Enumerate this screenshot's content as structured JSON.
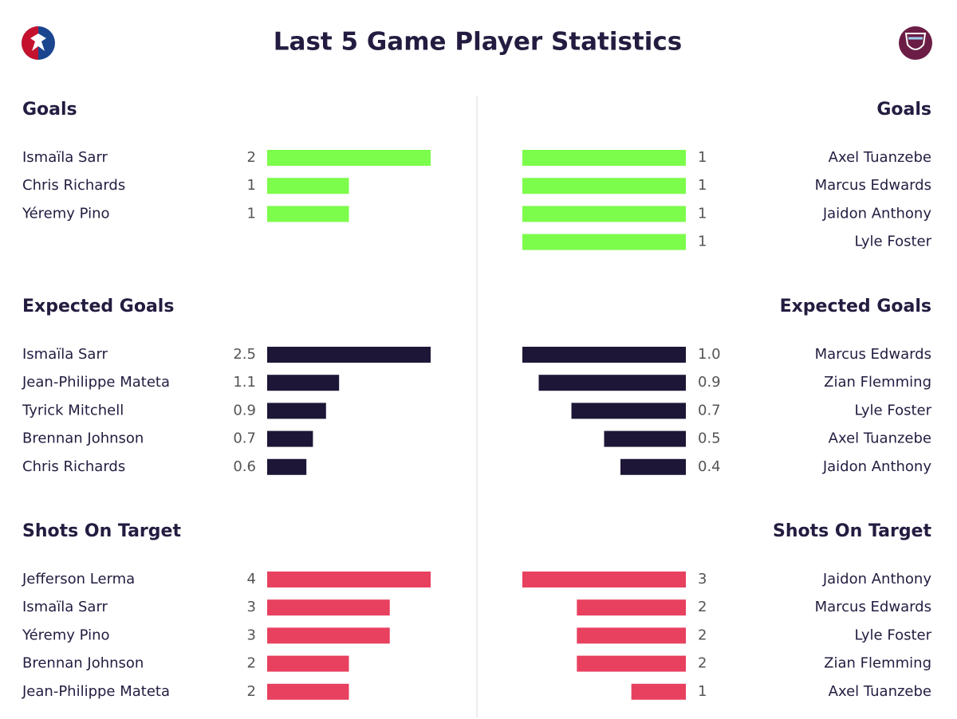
{
  "title": "Last 5 Game Player Statistics",
  "chart_data": [
    {
      "type": "bar",
      "side": "left",
      "title": "Goals",
      "categories": [
        "Ismaïla Sarr",
        "Chris Richards",
        "Yéremy Pino"
      ],
      "values": [
        2,
        1,
        1
      ],
      "xlim": [
        0,
        2
      ],
      "color": "#7cfc4b"
    },
    {
      "type": "bar",
      "side": "right",
      "title": "Goals",
      "categories": [
        "Axel Tuanzebe",
        "Marcus Edwards",
        "Jaidon Anthony",
        "Lyle Foster"
      ],
      "values": [
        1,
        1,
        1,
        1
      ],
      "xlim": [
        0,
        1
      ],
      "color": "#7cfc4b"
    },
    {
      "type": "bar",
      "side": "left",
      "title": "Expected Goals",
      "categories": [
        "Ismaïla Sarr",
        "Jean-Philippe Mateta",
        "Tyrick Mitchell",
        "Brennan Johnson",
        "Chris Richards"
      ],
      "values": [
        2.5,
        1.1,
        0.9,
        0.7,
        0.6
      ],
      "xlim": [
        0,
        2.5
      ],
      "color": "#1e1637"
    },
    {
      "type": "bar",
      "side": "right",
      "title": "Expected Goals",
      "categories": [
        "Marcus Edwards",
        "Zian Flemming",
        "Lyle Foster",
        "Axel Tuanzebe",
        "Jaidon Anthony"
      ],
      "values": [
        1.0,
        0.9,
        0.7,
        0.5,
        0.4
      ],
      "value_labels": [
        "1.0",
        "0.9",
        "0.7",
        "0.5",
        "0.4"
      ],
      "xlim": [
        0,
        1.0
      ],
      "color": "#1e1637"
    },
    {
      "type": "bar",
      "side": "left",
      "title": "Shots On Target",
      "categories": [
        "Jefferson Lerma",
        "Ismaïla Sarr",
        "Yéremy Pino",
        "Brennan Johnson",
        "Jean-Philippe Mateta"
      ],
      "values": [
        4,
        3,
        3,
        2,
        2
      ],
      "xlim": [
        0,
        4
      ],
      "color": "#e8405f"
    },
    {
      "type": "bar",
      "side": "right",
      "title": "Shots On Target",
      "categories": [
        "Jaidon Anthony",
        "Marcus Edwards",
        "Lyle Foster",
        "Zian Flemming",
        "Axel Tuanzebe"
      ],
      "values": [
        3,
        2,
        2,
        2,
        1
      ],
      "xlim": [
        0,
        3
      ],
      "color": "#e8405f"
    }
  ]
}
